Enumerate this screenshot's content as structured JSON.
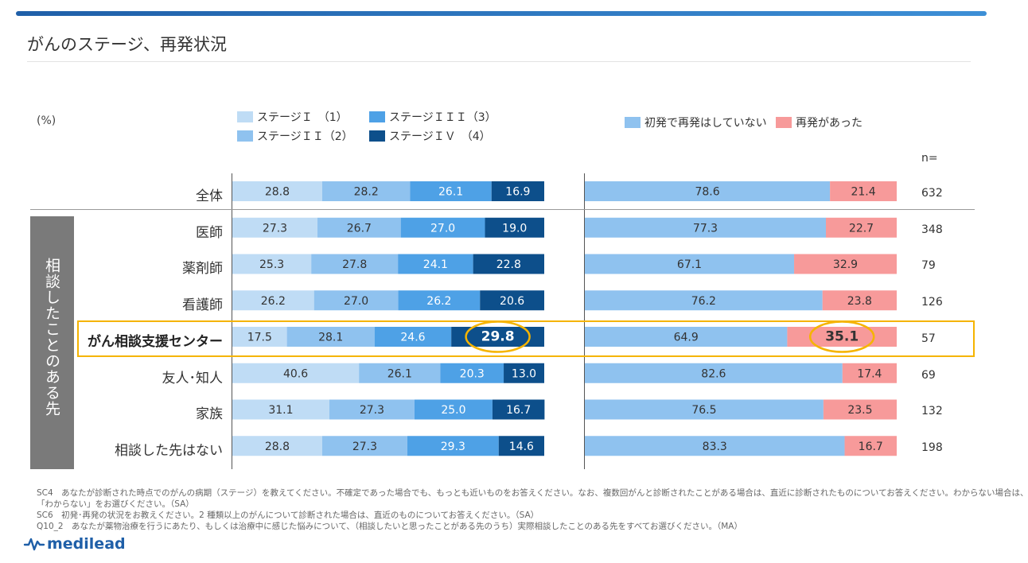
{
  "title": "がんのステージ、再発状況",
  "unit_label": "(%)",
  "n_header": "n=",
  "colors": {
    "stage1": "#bfdcf5",
    "stage2": "#8fc2ef",
    "stage3": "#4ea1e6",
    "stage4": "#0d4f8b",
    "no_recur": "#8fc2ef",
    "recur": "#f79a9a",
    "highlight": "#f5b400"
  },
  "legend_left": [
    "ステージＩ　（1）",
    "ステージＩＩ（2）",
    "ステージＩＩＩ（3）",
    "ステージＩＶ　（4）"
  ],
  "legend_right": [
    "初発で再発はしていない",
    "再発があった"
  ],
  "group_label": "相談したことのある先",
  "rows": [
    {
      "label": "全体",
      "n": "632"
    },
    {
      "label": "医師",
      "n": "348"
    },
    {
      "label": "薬剤師",
      "n": "79"
    },
    {
      "label": "看護師",
      "n": "126"
    },
    {
      "label": "がん相談支援センター",
      "n": "57"
    },
    {
      "label": "友人･知人",
      "n": "69"
    },
    {
      "label": "家族",
      "n": "132"
    },
    {
      "label": "相談した先はない",
      "n": "198"
    }
  ],
  "chart_data": [
    {
      "type": "bar",
      "stacked": "100%",
      "orientation": "horizontal",
      "categories": [
        "全体",
        "医師",
        "薬剤師",
        "看護師",
        "がん相談支援センター",
        "友人･知人",
        "家族",
        "相談した先はない"
      ],
      "series": [
        {
          "name": "ステージＩ　（1）",
          "values": [
            28.8,
            27.3,
            25.3,
            26.2,
            17.5,
            40.6,
            31.1,
            28.8
          ]
        },
        {
          "name": "ステージＩＩ（2）",
          "values": [
            28.2,
            26.7,
            27.8,
            27.0,
            28.1,
            26.1,
            27.3,
            27.3
          ]
        },
        {
          "name": "ステージＩＩＩ（3）",
          "values": [
            26.1,
            27.0,
            24.1,
            26.2,
            24.6,
            20.3,
            25.0,
            29.3
          ]
        },
        {
          "name": "ステージＩＶ　（4）",
          "values": [
            16.9,
            19.0,
            22.8,
            20.6,
            29.8,
            13.0,
            16.7,
            14.6
          ]
        }
      ],
      "highlight": {
        "category": "がん相談支援センター",
        "series": "ステージＩＶ　（4）"
      },
      "legend": "top"
    },
    {
      "type": "bar",
      "stacked": "100%",
      "orientation": "horizontal",
      "categories": [
        "全体",
        "医師",
        "薬剤師",
        "看護師",
        "がん相談支援センター",
        "友人･知人",
        "家族",
        "相談した先はない"
      ],
      "series": [
        {
          "name": "初発で再発はしていない",
          "values": [
            78.6,
            77.3,
            67.1,
            76.2,
            64.9,
            82.6,
            76.5,
            83.3
          ]
        },
        {
          "name": "再発があった",
          "values": [
            21.4,
            22.7,
            32.9,
            23.8,
            35.1,
            17.4,
            23.5,
            16.7
          ]
        }
      ],
      "highlight": {
        "category": "がん相談支援センター",
        "series": "再発があった"
      },
      "legend": "top"
    }
  ],
  "footnotes": [
    "SC4　あなたが診断された時点でのがんの病期（ステージ）を教えてください。不確定であった場合でも、もっとも近いものをお答えください。なお、複数回がんと診断されたことがある場合は、直近に診断されたものについてお答えください。わからない場合は、",
    "「わからない」をお選びください。（SA）",
    "SC6　初発･再発の状況をお教えください。2 種類以上のがんについて診断された場合は、直近のものについてお答えください。（SA）",
    "Q10_2　あなたが薬物治療を行うにあたり、もしくは治療中に感じた悩みについて、（相談したいと思ったことがある先のうち）実際相談したことのある先をすべてお選びください。（MA）"
  ],
  "logo_text": "medilead"
}
